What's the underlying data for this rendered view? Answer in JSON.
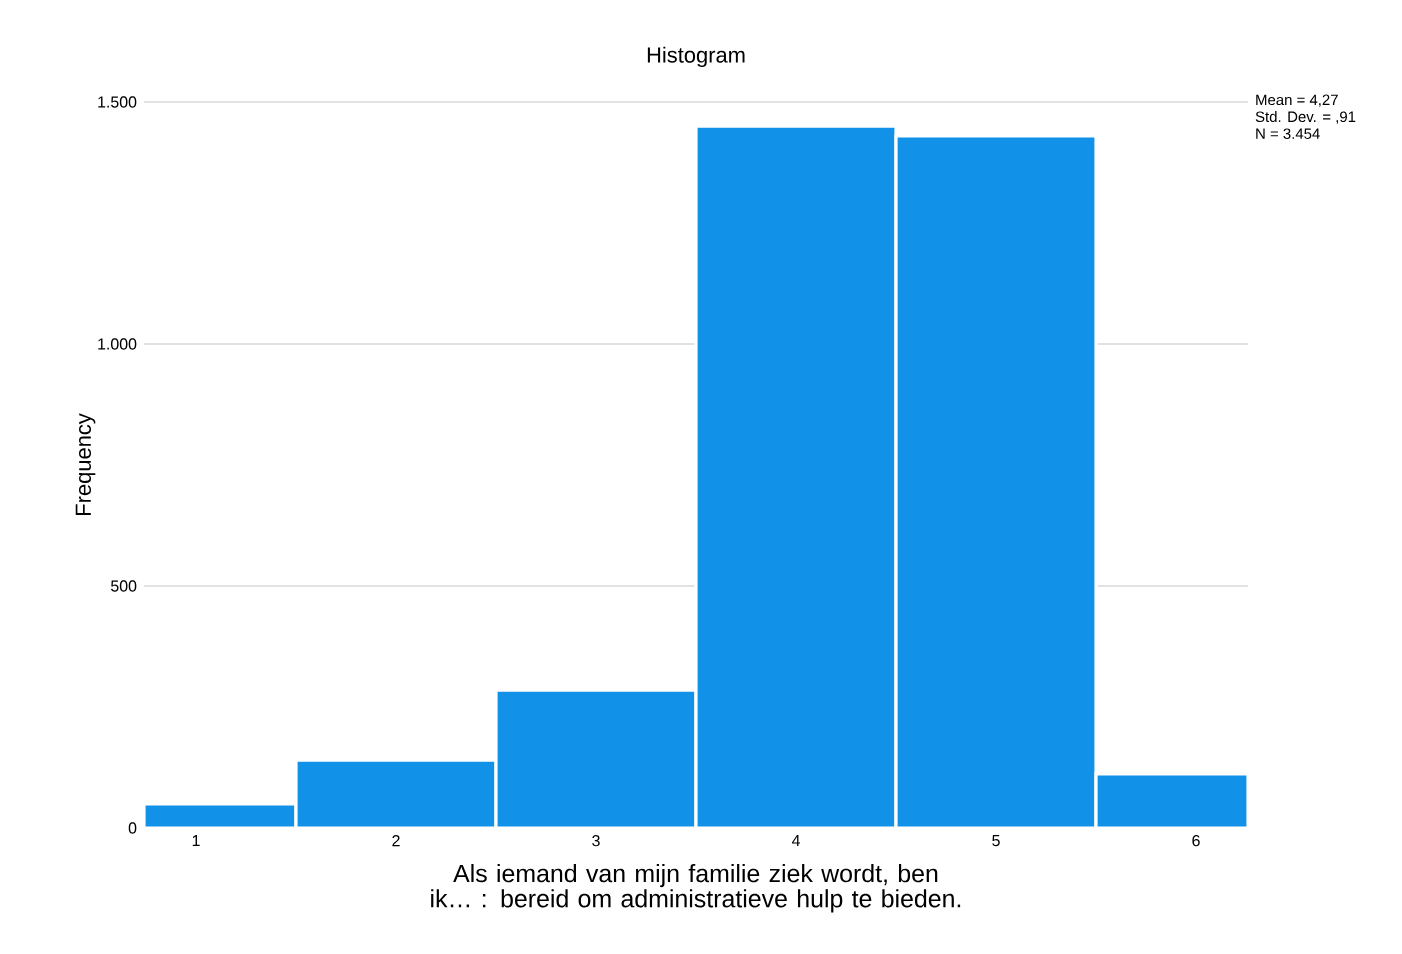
{
  "chart_data": {
    "type": "histogram",
    "title": "Histogram",
    "xlabel": "Als iemand van mijn familie ziek wordt, ben ik… : bereid om administratieve hulp te bieden.",
    "ylabel": "Frequency",
    "bins": [
      0.74,
      1.5,
      2.5,
      3.5,
      4.5,
      5.5,
      6.26
    ],
    "values": [
      50,
      140,
      285,
      1450,
      1430,
      112
    ],
    "color": "#1192e8",
    "xlim": [
      0.74,
      6.26
    ],
    "ylim": [
      0,
      1500
    ],
    "xticks": [
      {
        "value": 1,
        "label": "1"
      },
      {
        "value": 2,
        "label": "2"
      },
      {
        "value": 3,
        "label": "3"
      },
      {
        "value": 4,
        "label": "4"
      },
      {
        "value": 5,
        "label": "5"
      },
      {
        "value": 6,
        "label": "6"
      }
    ],
    "yticks": [
      {
        "value": 0,
        "label": "0"
      },
      {
        "value": 500,
        "label": "500"
      },
      {
        "value": 1000,
        "label": "1.000"
      },
      {
        "value": 1500,
        "label": "1.500"
      }
    ],
    "grid": "y",
    "annotations": [
      "Mean = 4,27",
      "Std. Dev. = ,91",
      "N = 3.454"
    ]
  }
}
